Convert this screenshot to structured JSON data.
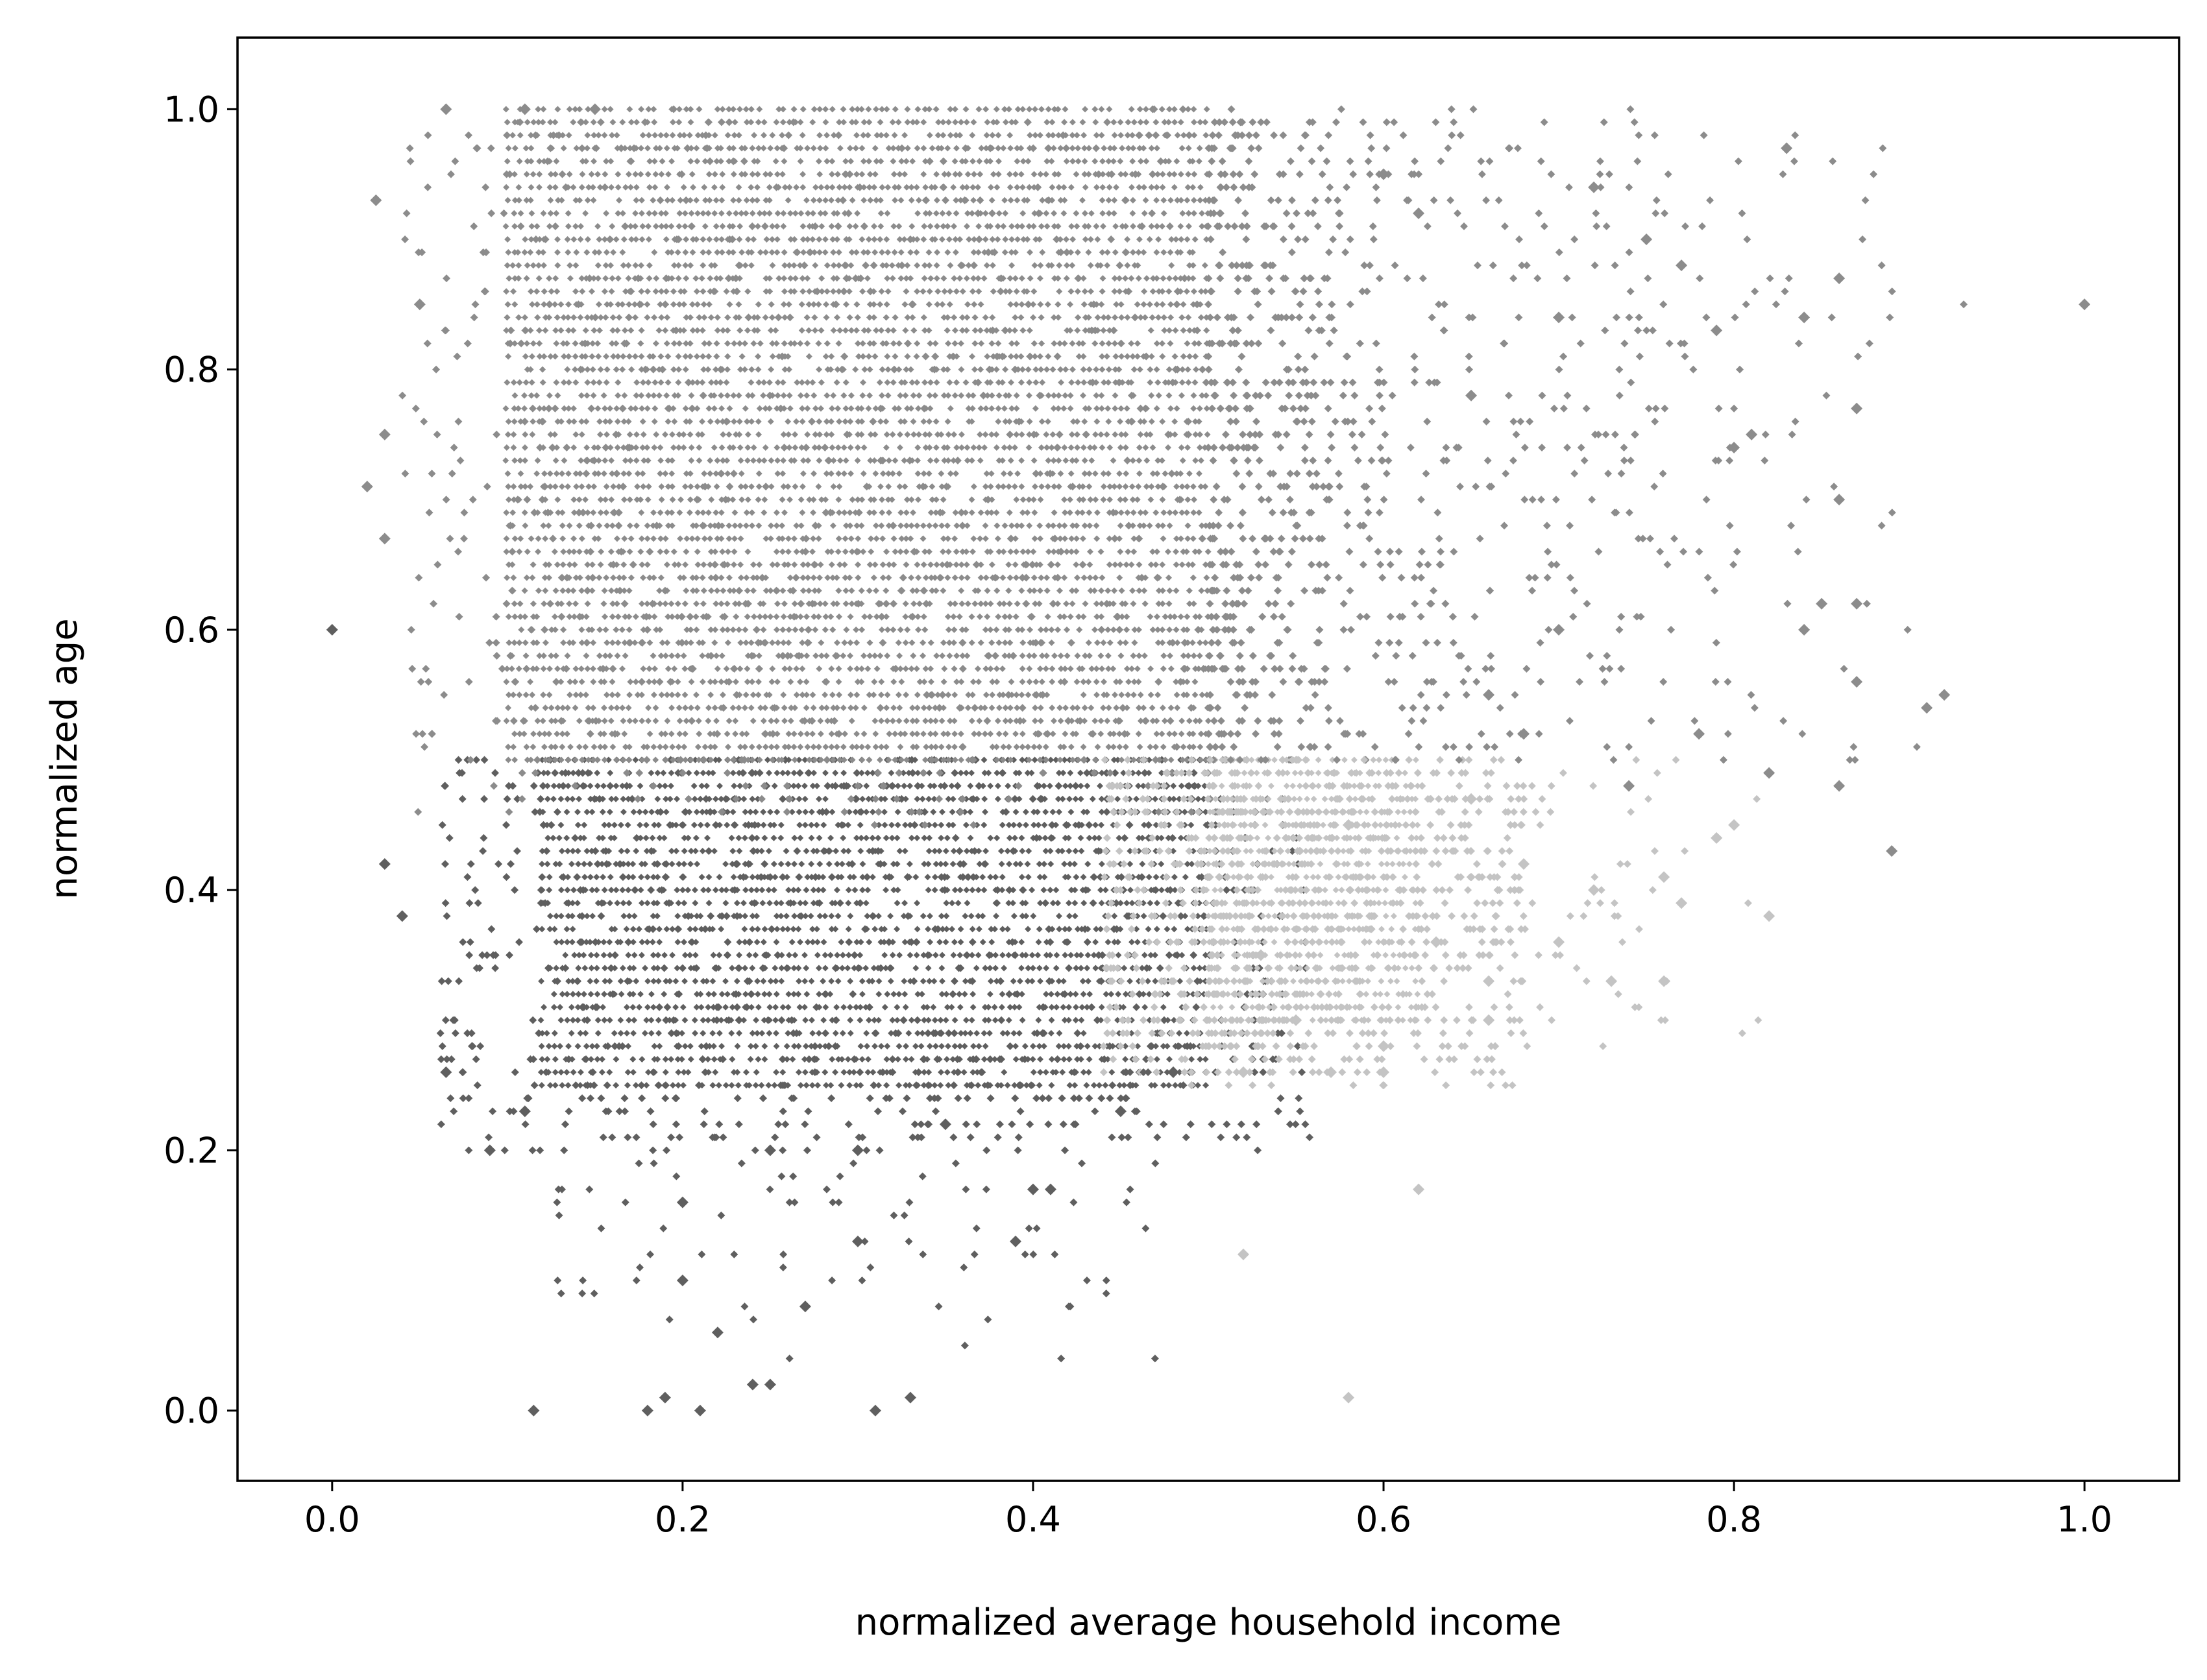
{
  "chart_data": {
    "type": "scatter",
    "title": "",
    "xlabel": "normalized average household income",
    "ylabel": "normalized age",
    "xlim": [
      -0.054,
      1.054
    ],
    "ylim": [
      -0.054,
      1.055
    ],
    "xticks": [
      "0.0",
      "0.2",
      "0.4",
      "0.6",
      "0.8",
      "1.0"
    ],
    "yticks": [
      "0.0",
      "0.2",
      "0.4",
      "0.6",
      "0.8",
      "1.0"
    ],
    "grid": false,
    "legend": "none",
    "marker": "diamond",
    "series": [
      {
        "color": "#5f5f5f",
        "region": "x 0.0–0.5, y 0.0–0.5",
        "dense_block": {
          "x": [
            0.12,
            0.5
          ],
          "y": [
            0.25,
            0.5
          ]
        },
        "sample_points": [
          [
            0.0,
            0.6
          ],
          [
            0.03,
            0.42
          ],
          [
            0.04,
            0.38
          ],
          [
            0.065,
            0.26
          ],
          [
            0.09,
            0.2
          ],
          [
            0.11,
            0.23
          ],
          [
            0.115,
            0.0
          ],
          [
            0.18,
            0.0
          ],
          [
            0.19,
            0.01
          ],
          [
            0.21,
            0.0
          ],
          [
            0.2,
            0.1
          ],
          [
            0.22,
            0.06
          ],
          [
            0.24,
            0.02
          ],
          [
            0.25,
            0.02
          ],
          [
            0.27,
            0.08
          ],
          [
            0.3,
            0.13
          ],
          [
            0.31,
            0.0
          ],
          [
            0.33,
            0.01
          ],
          [
            0.39,
            0.13
          ],
          [
            0.4,
            0.17
          ],
          [
            0.41,
            0.17
          ],
          [
            0.2,
            0.16
          ],
          [
            0.25,
            0.2
          ],
          [
            0.3,
            0.2
          ],
          [
            0.35,
            0.22
          ],
          [
            0.45,
            0.23
          ],
          [
            0.48,
            0.26
          ]
        ]
      },
      {
        "color": "#8c8c8c",
        "region": "x 0.0–0.5, y 0.5–1.0 and x 0.5–1.0, y 0.5–1.0",
        "dense_block": {
          "x": [
            0.1,
            0.5
          ],
          "y": [
            0.5,
            1.0
          ]
        },
        "sample_points": [
          [
            0.02,
            0.71
          ],
          [
            0.025,
            0.93
          ],
          [
            0.03,
            0.67
          ],
          [
            0.03,
            0.75
          ],
          [
            0.05,
            0.85
          ],
          [
            0.065,
            1.0
          ],
          [
            0.11,
            1.0
          ],
          [
            0.15,
            1.0
          ],
          [
            0.6,
            0.95
          ],
          [
            0.62,
            0.92
          ],
          [
            0.65,
            0.78
          ],
          [
            0.7,
            0.84
          ],
          [
            0.72,
            0.94
          ],
          [
            0.75,
            0.9
          ],
          [
            0.77,
            0.88
          ],
          [
            0.79,
            0.83
          ],
          [
            0.8,
            0.74
          ],
          [
            0.81,
            0.75
          ],
          [
            0.83,
            0.97
          ],
          [
            0.84,
            0.84
          ],
          [
            0.86,
            0.87
          ],
          [
            0.86,
            0.7
          ],
          [
            0.87,
            0.77
          ],
          [
            0.85,
            0.62
          ],
          [
            0.87,
            0.62
          ],
          [
            0.84,
            0.6
          ],
          [
            0.86,
            0.48
          ],
          [
            0.87,
            0.56
          ],
          [
            0.89,
            0.43
          ],
          [
            0.91,
            0.54
          ],
          [
            0.92,
            0.55
          ],
          [
            1.0,
            0.85
          ],
          [
            0.82,
            0.49
          ],
          [
            0.78,
            0.52
          ],
          [
            0.74,
            0.48
          ],
          [
            0.7,
            0.6
          ],
          [
            0.68,
            0.52
          ],
          [
            0.66,
            0.55
          ]
        ]
      },
      {
        "color": "#c4c4c4",
        "region": "x 0.5–1.0, y 0.0–0.5",
        "dense_block": {
          "x": [
            0.5,
            0.62
          ],
          "y": [
            0.3,
            0.5
          ]
        },
        "sample_points": [
          [
            0.52,
            0.12
          ],
          [
            0.58,
            0.01
          ],
          [
            0.62,
            0.17
          ],
          [
            0.6,
            0.26
          ],
          [
            0.57,
            0.26
          ],
          [
            0.52,
            0.26
          ],
          [
            0.66,
            0.3
          ],
          [
            0.66,
            0.33
          ],
          [
            0.7,
            0.36
          ],
          [
            0.73,
            0.33
          ],
          [
            0.76,
            0.33
          ],
          [
            0.77,
            0.39
          ],
          [
            0.82,
            0.38
          ],
          [
            0.8,
            0.45
          ],
          [
            0.79,
            0.44
          ],
          [
            0.76,
            0.41
          ],
          [
            0.72,
            0.4
          ],
          [
            0.68,
            0.42
          ],
          [
            0.65,
            0.47
          ],
          [
            0.63,
            0.36
          ],
          [
            0.6,
            0.28
          ],
          [
            0.55,
            0.3
          ],
          [
            0.53,
            0.35
          ],
          [
            0.58,
            0.45
          ]
        ]
      }
    ]
  }
}
